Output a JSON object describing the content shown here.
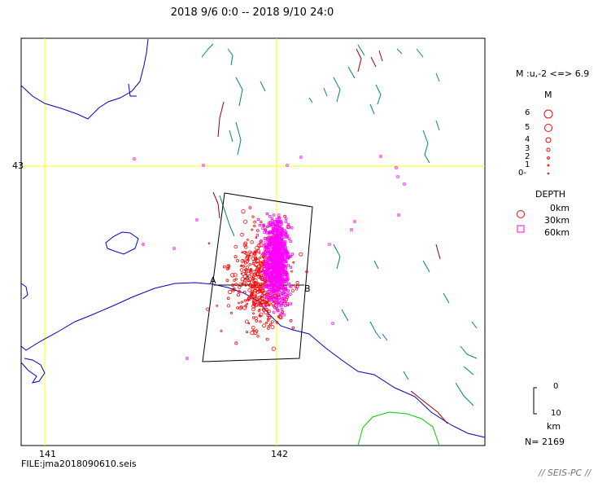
{
  "header": {
    "title": "2018 9/6 0:0 -- 2018 9/10 24:0"
  },
  "axes": {
    "lat_label": "43",
    "lon_labels": [
      "141",
      "142"
    ]
  },
  "section": {
    "a": "A",
    "b": "B"
  },
  "legend": {
    "mag_range": "M :u,-2 <=> 6.9",
    "mag_title": "M",
    "mag_items": [
      "6",
      "5",
      "4",
      "3",
      "2",
      "1",
      "0-"
    ],
    "depth_title": "DEPTH",
    "depth_items": [
      "0km",
      "30km",
      "60km"
    ],
    "scale_top": "0",
    "scale_bottom": "10",
    "scale_unit": "km",
    "count": "N= 2169"
  },
  "footer": {
    "file": "FILE:jma2018090610.seis",
    "brand": "// SEIS-PC //"
  },
  "colors": {
    "coast": "#0000cc",
    "grid": "#ffff00",
    "shallow": "#ff0000",
    "deep": "#ff00ff",
    "fault_teal": "#008080",
    "fault_red": "#990000",
    "volcano": "#00cc00"
  }
}
